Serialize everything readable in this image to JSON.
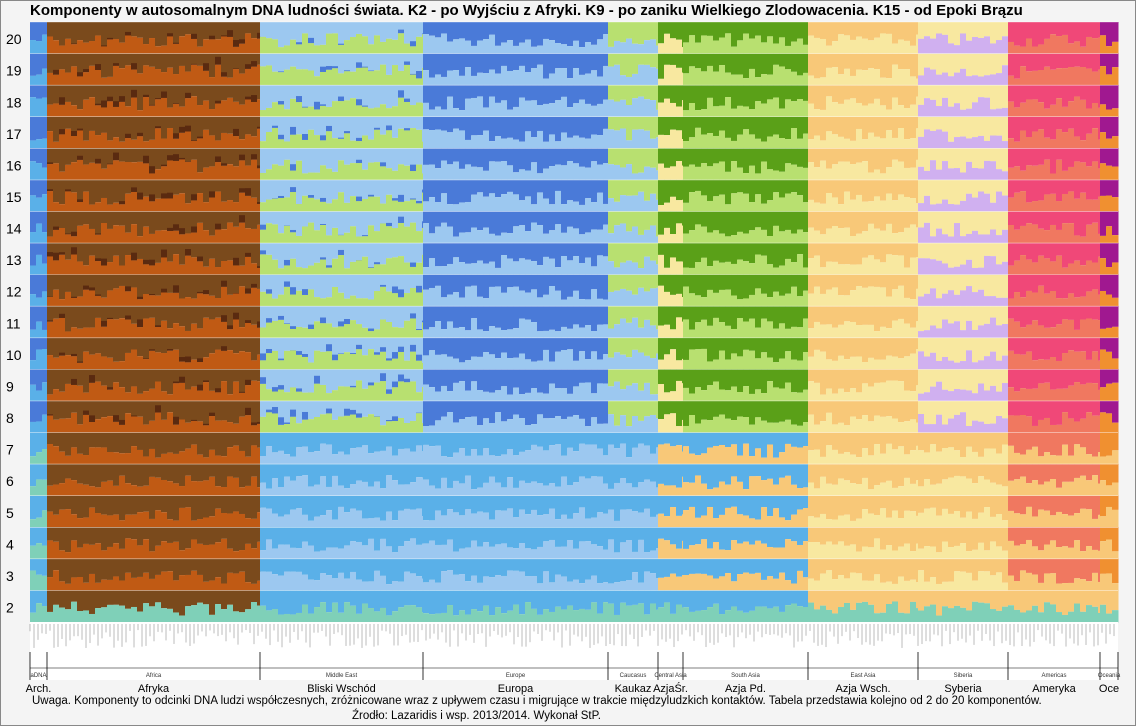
{
  "title": "Komponenty w autosomalnym DNA ludności świata.    K2 - po Wyjściu z Afryki.    K9 - po zaniku Wielkiego Zlodowacenia.    K15 - od Epoki Brązu",
  "note": "Uwaga.  Komponenty to odcinki DNA ludzi współczesnych, zróżnicowane wraz z upływem czasu i migrujące w trakcie międzyludzkich kontaktów. Tabela przedstawia kolejno od 2 do 20 komponentów.",
  "source": "Źrodło: Lazaridis i wsp. 2013/2014.   Wykonał StP.",
  "chart_data": {
    "type": "heatmap",
    "title": "Komponenty w autosomalnym DNA ludności świata.",
    "k_values": [
      "2",
      "3",
      "4",
      "5",
      "6",
      "7",
      "8",
      "9",
      "10",
      "11",
      "12",
      "13",
      "14",
      "15",
      "16",
      "17",
      "18",
      "19",
      "20"
    ],
    "regions_top": [
      "aDNA",
      "Africa",
      "Middle East",
      "Europe",
      "Caucasus",
      "Central Asia",
      "South Asia",
      "East Asia",
      "Siberia",
      "Americas",
      "Oceania"
    ],
    "regions_bottom": [
      "Arch.",
      "Afryka",
      "Bliski Wschód",
      "Europa",
      "Kaukaz",
      "AzjaŚr.",
      "Azja Pd.",
      "Azja Wsch.",
      "Syberia",
      "Ameryka",
      "Oce"
    ],
    "colors": {
      "africa_brown": "#7a4a1c",
      "africa_orange": "#c05a14",
      "africa_dark": "#5a2a10",
      "teal": "#7fd0b8",
      "light_blue": "#9cc8f0",
      "blue": "#4a7ad8",
      "sky": "#5ab0e8",
      "yellow_green": "#b8e070",
      "green": "#5aa018",
      "cream": "#f8e8a0",
      "peach": "#f8c878",
      "pink": "#f04878",
      "salmon": "#f07860",
      "purple": "#a01890",
      "lilac": "#d0b0f0",
      "orange": "#f09030"
    }
  }
}
